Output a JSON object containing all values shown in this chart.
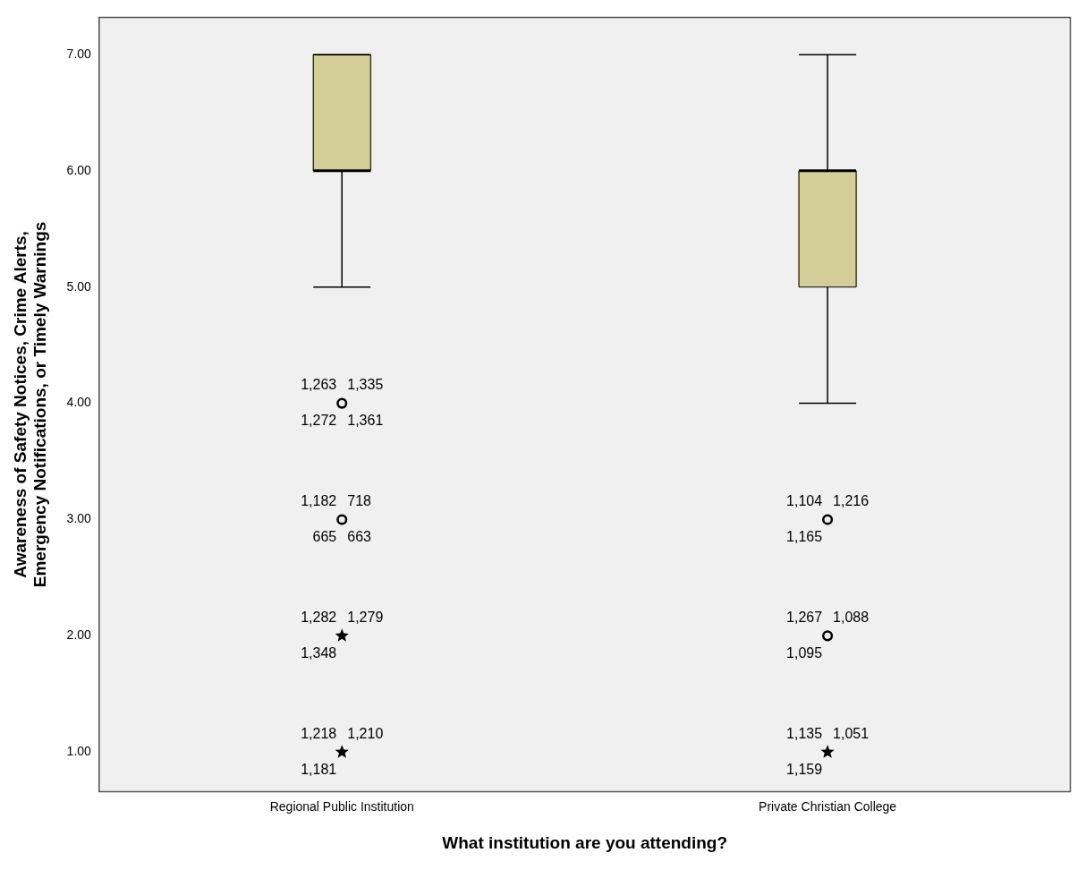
{
  "chart_data": {
    "type": "box",
    "xlabel": "What institution are you attending?",
    "ylabel": "Awareness of Safety Notices, Crime Alerts, Emergency Notifications, or Timely Warnings",
    "categories": [
      "Regional Public Institution",
      "Private Christian College"
    ],
    "ylim": [
      0.66,
      7.32
    ],
    "yticks": [
      {
        "value": 1,
        "label": "1.00"
      },
      {
        "value": 2,
        "label": "2.00"
      },
      {
        "value": 3,
        "label": "3.00"
      },
      {
        "value": 4,
        "label": "4.00"
      },
      {
        "value": 5,
        "label": "5.00"
      },
      {
        "value": 6,
        "label": "6.00"
      },
      {
        "value": 7,
        "label": "7.00"
      }
    ],
    "grid": false,
    "legend": false,
    "series": [
      {
        "type": "box",
        "color": "#d3ce97",
        "boxes": [
          {
            "low": 5,
            "q1": 6,
            "median": 6,
            "q3": 7,
            "high": 7
          },
          {
            "low": 4,
            "q1": 5,
            "median": 6,
            "q3": 6,
            "high": 7
          }
        ]
      },
      {
        "type": "scatter",
        "marker": "circle",
        "color": "#000000",
        "x": [
          "Regional Public Institution",
          "Regional Public Institution",
          "Private Christian College",
          "Private Christian College"
        ],
        "values": [
          4,
          3,
          3,
          2
        ]
      },
      {
        "type": "scatter",
        "marker": "star",
        "color": "#000000",
        "x": [
          "Regional Public Institution",
          "Regional Public Institution",
          "Private Christian College"
        ],
        "values": [
          2,
          1,
          1
        ]
      }
    ],
    "annotations": [
      {
        "text": "1,263",
        "x": "Regional Public Institution",
        "y": 4
      },
      {
        "text": "1,335",
        "x": "Regional Public Institution",
        "y": 4
      },
      {
        "text": "1,272",
        "x": "Regional Public Institution",
        "y": 4
      },
      {
        "text": "1,361",
        "x": "Regional Public Institution",
        "y": 4
      },
      {
        "text": "1,182",
        "x": "Regional Public Institution",
        "y": 3
      },
      {
        "text": "718",
        "x": "Regional Public Institution",
        "y": 3
      },
      {
        "text": "665",
        "x": "Regional Public Institution",
        "y": 3
      },
      {
        "text": "663",
        "x": "Regional Public Institution",
        "y": 3
      },
      {
        "text": "1,282",
        "x": "Regional Public Institution",
        "y": 2
      },
      {
        "text": "1,279",
        "x": "Regional Public Institution",
        "y": 2
      },
      {
        "text": "1,348",
        "x": "Regional Public Institution",
        "y": 2
      },
      {
        "text": "1,218",
        "x": "Regional Public Institution",
        "y": 1
      },
      {
        "text": "1,210",
        "x": "Regional Public Institution",
        "y": 1
      },
      {
        "text": "1,181",
        "x": "Regional Public Institution",
        "y": 1
      },
      {
        "text": "1,104",
        "x": "Private Christian College",
        "y": 3
      },
      {
        "text": "1,216",
        "x": "Private Christian College",
        "y": 3
      },
      {
        "text": "1,165",
        "x": "Private Christian College",
        "y": 3
      },
      {
        "text": "1,267",
        "x": "Private Christian College",
        "y": 2
      },
      {
        "text": "1,088",
        "x": "Private Christian College",
        "y": 2
      },
      {
        "text": "1,095",
        "x": "Private Christian College",
        "y": 2
      },
      {
        "text": "1,135",
        "x": "Private Christian College",
        "y": 1
      },
      {
        "text": "1,051",
        "x": "Private Christian College",
        "y": 1
      },
      {
        "text": "1,159",
        "x": "Private Christian College",
        "y": 1
      }
    ]
  }
}
